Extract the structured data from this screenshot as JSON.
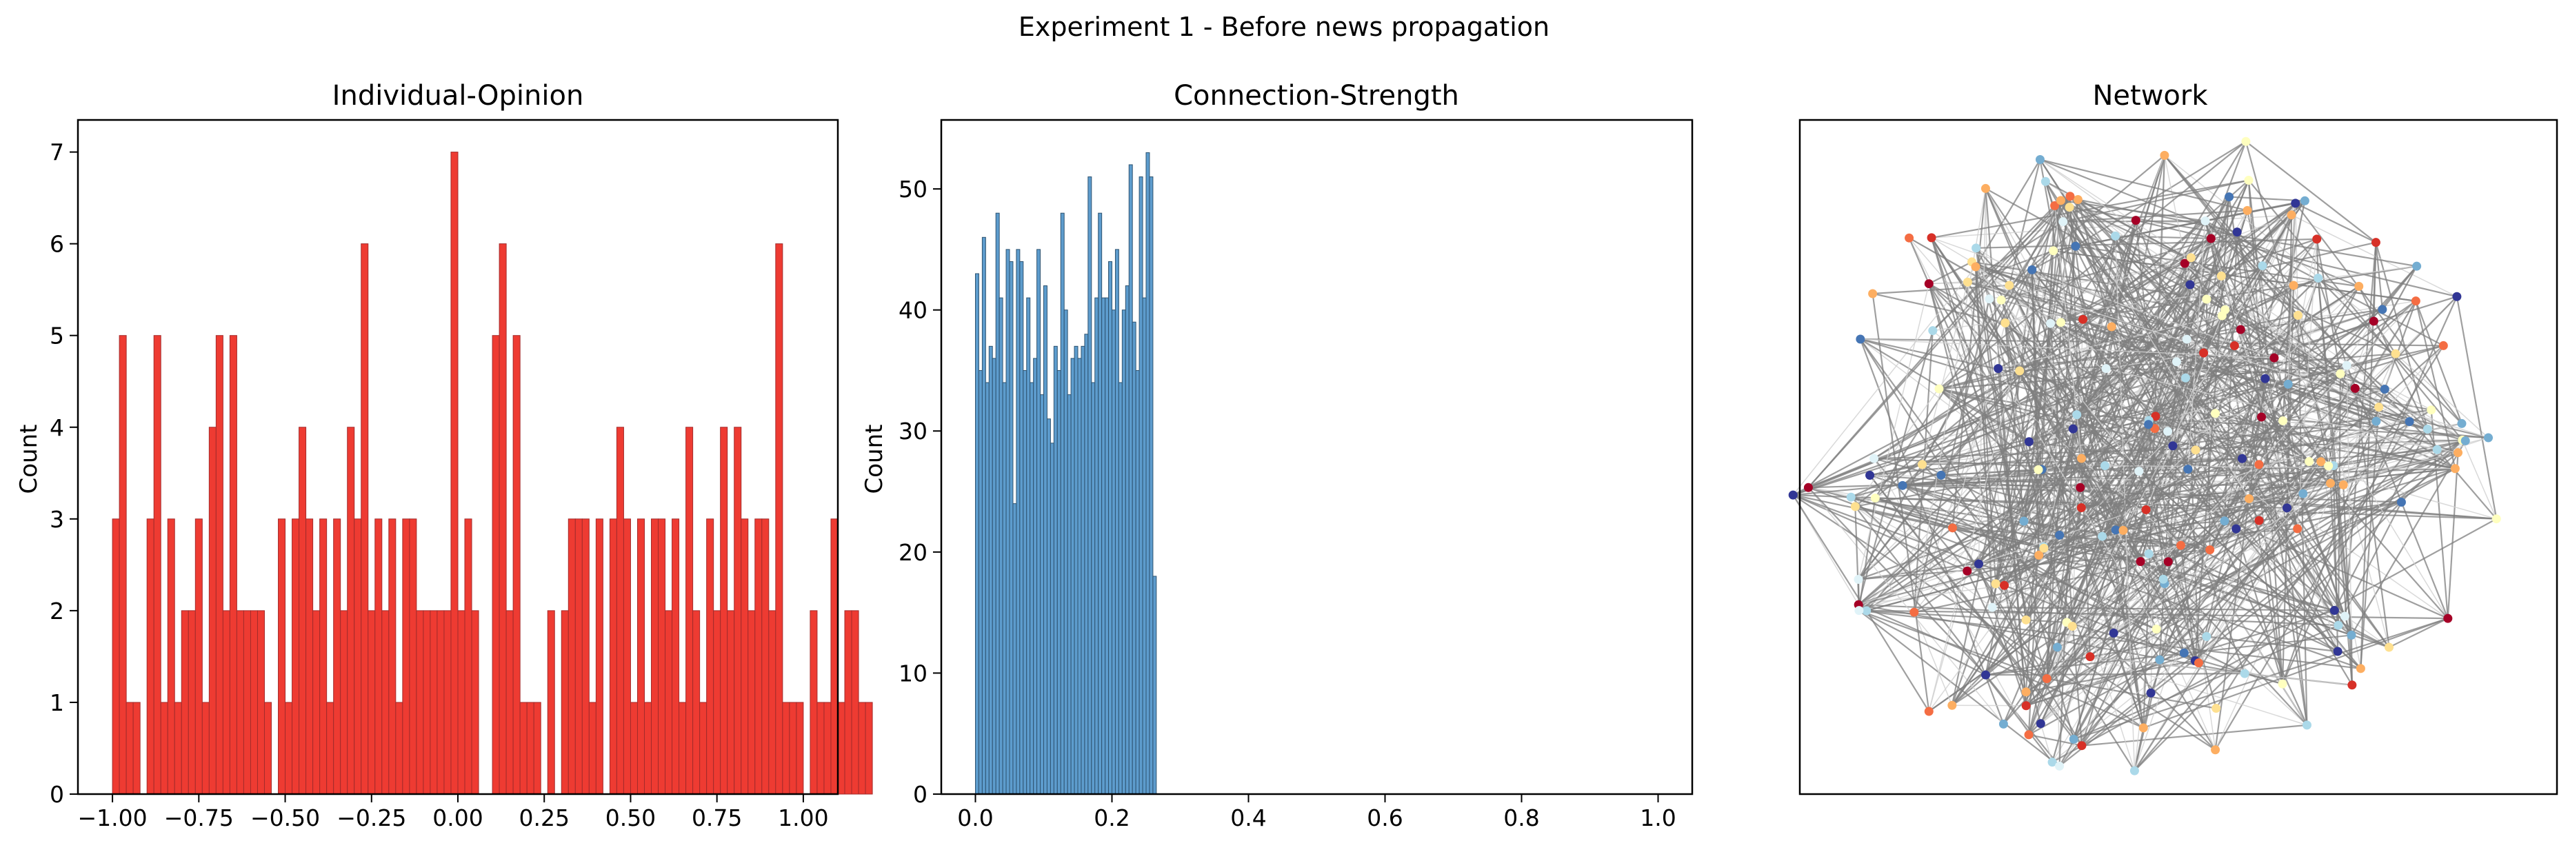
{
  "figure": {
    "suptitle": "Experiment 1 - Before news propagation"
  },
  "chart_data": [
    {
      "type": "bar",
      "title": "Individual-Opinion",
      "xlabel": "",
      "ylabel": "Count",
      "xlim": [
        -1.1,
        1.1
      ],
      "ylim": [
        0,
        7.35
      ],
      "xticks": [
        -1.0,
        -0.75,
        -0.5,
        -0.25,
        0.0,
        0.25,
        0.5,
        0.75,
        1.0
      ],
      "xtick_labels": [
        "−1.00",
        "−0.75",
        "−0.50",
        "−0.25",
        "0.00",
        "0.25",
        "0.50",
        "0.75",
        "1.00"
      ],
      "yticks": [
        0,
        1,
        2,
        3,
        4,
        5,
        6,
        7
      ],
      "ytick_labels": [
        "0",
        "1",
        "2",
        "3",
        "4",
        "5",
        "6",
        "7"
      ],
      "bin_start": -1.0,
      "bin_width": 0.02,
      "values": [
        3,
        5,
        1,
        1,
        0,
        3,
        5,
        1,
        3,
        1,
        2,
        2,
        3,
        1,
        4,
        5,
        2,
        5,
        2,
        2,
        2,
        2,
        1,
        0,
        3,
        1,
        3,
        4,
        3,
        2,
        3,
        1,
        3,
        2,
        4,
        3,
        6,
        2,
        3,
        2,
        3,
        1,
        3,
        3,
        2,
        2,
        2,
        2,
        2,
        7,
        2,
        3,
        2,
        0,
        0,
        5,
        6,
        2,
        5,
        1,
        1,
        1,
        0,
        2,
        0,
        2,
        3,
        3,
        3,
        1,
        3,
        0,
        3,
        4,
        3,
        1,
        3,
        1,
        3,
        3,
        2,
        3,
        1,
        4,
        2,
        1,
        3,
        2,
        4,
        2,
        4,
        3,
        2,
        3,
        3,
        2,
        6,
        1,
        1,
        1,
        0,
        2,
        1,
        1,
        3,
        1,
        2,
        2,
        1,
        1
      ],
      "color": "#ee3b32",
      "edge_color": "#a32b2b"
    },
    {
      "type": "bar",
      "title": "Connection-Strength",
      "xlabel": "",
      "ylabel": "Count",
      "xlim": [
        -0.05,
        1.05
      ],
      "ylim": [
        0,
        55.7
      ],
      "xticks": [
        0.0,
        0.2,
        0.4,
        0.6,
        0.8,
        1.0
      ],
      "xtick_labels": [
        "0.0",
        "0.2",
        "0.4",
        "0.6",
        "0.8",
        "1.0"
      ],
      "yticks": [
        0,
        10,
        20,
        30,
        40,
        50
      ],
      "ytick_labels": [
        "0",
        "10",
        "20",
        "30",
        "40",
        "50"
      ],
      "bin_start": 0.0,
      "bin_width": 0.005,
      "values": [
        43,
        35,
        46,
        34,
        37,
        36,
        48,
        41,
        34,
        45,
        44,
        24,
        45,
        44,
        35,
        41,
        34,
        36,
        45,
        33,
        42,
        31,
        29,
        37,
        35,
        48,
        40,
        33,
        36,
        37,
        36,
        37,
        38,
        51,
        34,
        41,
        48,
        41,
        41,
        44,
        40,
        45,
        34,
        40,
        42,
        52,
        39,
        35,
        51,
        41,
        53,
        51,
        18
      ],
      "color": "#5d9ccd",
      "edge_color": "#2e5370"
    },
    {
      "type": "network",
      "title": "Network",
      "node_palette": [
        "#a50026",
        "#d73027",
        "#f46d43",
        "#fdae61",
        "#fee090",
        "#ffffbf",
        "#e0f3f8",
        "#abd9e9",
        "#74add1",
        "#4575b4",
        "#313695"
      ],
      "edge_color": "#7f7f7f"
    }
  ]
}
